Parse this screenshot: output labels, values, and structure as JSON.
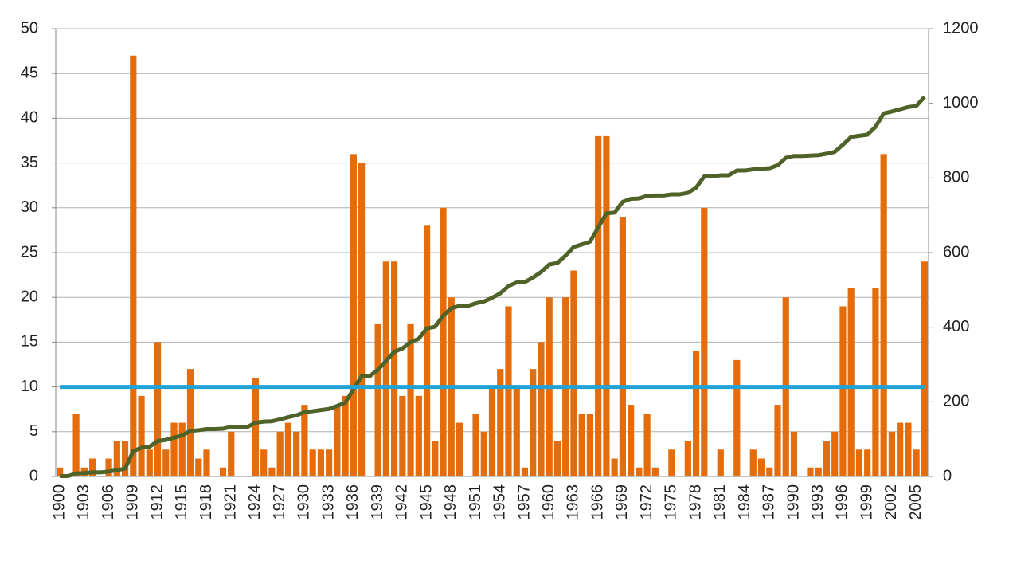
{
  "chart_data": {
    "type": "bar",
    "categories": [
      "1900",
      null,
      null,
      "1903",
      null,
      null,
      "1906",
      null,
      null,
      "1909",
      null,
      null,
      "1912",
      null,
      null,
      "1915",
      null,
      null,
      "1918",
      null,
      null,
      "1921",
      null,
      null,
      "1924",
      null,
      null,
      "1927",
      null,
      null,
      "1930",
      null,
      null,
      "1933",
      null,
      null,
      "1936",
      null,
      null,
      "1939",
      null,
      null,
      "1942",
      null,
      null,
      "1945",
      null,
      null,
      "1948",
      null,
      null,
      "1951",
      null,
      null,
      "1954",
      null,
      null,
      "1957",
      null,
      null,
      "1960",
      null,
      null,
      "1963",
      null,
      null,
      "1966",
      null,
      null,
      "1969",
      null,
      null,
      "1972",
      null,
      null,
      "1975",
      null,
      null,
      "1978",
      null,
      null,
      "1981",
      null,
      null,
      "1984",
      null,
      null,
      "1987",
      null,
      null,
      "1990",
      null,
      null,
      "1993",
      null,
      null,
      "1996",
      null,
      null,
      "1999",
      null,
      null,
      "2002",
      null,
      null,
      "2005",
      null
    ],
    "series": [
      {
        "type": "bar",
        "color": "#e46c0a",
        "values": [
          1,
          0,
          7,
          1,
          2,
          0,
          2,
          4,
          4,
          47,
          9,
          3,
          15,
          3,
          6,
          6,
          12,
          2,
          3,
          0,
          1,
          5,
          0,
          0,
          11,
          3,
          1,
          5,
          6,
          5,
          8,
          3,
          3,
          3,
          8,
          9,
          36,
          35,
          0,
          17,
          24,
          24,
          9,
          17,
          9,
          28,
          4,
          30,
          20,
          6,
          0,
          7,
          5,
          10,
          12,
          19,
          10,
          1,
          12,
          15,
          20,
          4,
          20,
          23,
          7,
          7,
          38,
          38,
          2,
          29,
          8,
          1,
          7,
          1,
          0,
          3,
          0,
          4,
          14,
          30,
          0,
          3,
          0,
          13,
          0,
          3,
          2,
          1,
          8,
          20,
          5,
          0,
          1,
          1,
          4,
          5,
          19,
          21,
          3,
          3,
          21,
          36,
          5,
          6,
          6,
          3,
          24
        ]
      },
      {
        "type": "line",
        "axis": "y2",
        "color": "#4f6228",
        "values": [
          1,
          1,
          8,
          9,
          11,
          11,
          13,
          17,
          21,
          68,
          77,
          80,
          95,
          98,
          104,
          110,
          122,
          124,
          127,
          127,
          128,
          133,
          133,
          133,
          144,
          147,
          148,
          153,
          159,
          164,
          172,
          175,
          178,
          181,
          189,
          198,
          234,
          269,
          269,
          286,
          310,
          334,
          343,
          360,
          369,
          397,
          401,
          431,
          451,
          457,
          457,
          464,
          469,
          479,
          491,
          510,
          520,
          521,
          533,
          548,
          568,
          572,
          592,
          615,
          622,
          629,
          667,
          705,
          707,
          736,
          744,
          745,
          752,
          753,
          753,
          756,
          756,
          760,
          774,
          804,
          804,
          807,
          807,
          820,
          820,
          823,
          825,
          826,
          834,
          854,
          859,
          859,
          860,
          861,
          865,
          870,
          889,
          910,
          913,
          916,
          937,
          973,
          978,
          984,
          990,
          993,
          1017
        ]
      },
      {
        "type": "line",
        "color": "#1fa3d8",
        "values": [
          10,
          10,
          10,
          10,
          10,
          10,
          10,
          10,
          10,
          10,
          10,
          10,
          10,
          10,
          10,
          10,
          10,
          10,
          10,
          10,
          10,
          10,
          10,
          10,
          10,
          10,
          10,
          10,
          10,
          10,
          10,
          10,
          10,
          10,
          10,
          10,
          10,
          10,
          10,
          10,
          10,
          10,
          10,
          10,
          10,
          10,
          10,
          10,
          10,
          10,
          10,
          10,
          10,
          10,
          10,
          10,
          10,
          10,
          10,
          10,
          10,
          10,
          10,
          10,
          10,
          10,
          10,
          10,
          10,
          10,
          10,
          10,
          10,
          10,
          10,
          10,
          10,
          10,
          10,
          10,
          10,
          10,
          10,
          10,
          10,
          10,
          10,
          10,
          10,
          10,
          10,
          10,
          10,
          10,
          10,
          10,
          10,
          10,
          10,
          10,
          10,
          10,
          10,
          10,
          10,
          10,
          10
        ]
      }
    ],
    "ylim": [
      0,
      50
    ],
    "yticks": [
      0,
      5,
      10,
      15,
      20,
      25,
      30,
      35,
      40,
      45,
      50
    ],
    "y2lim": [
      0,
      1200
    ],
    "y2ticks": [
      0,
      200,
      400,
      600,
      800,
      1000,
      1200
    ],
    "grid": true
  }
}
